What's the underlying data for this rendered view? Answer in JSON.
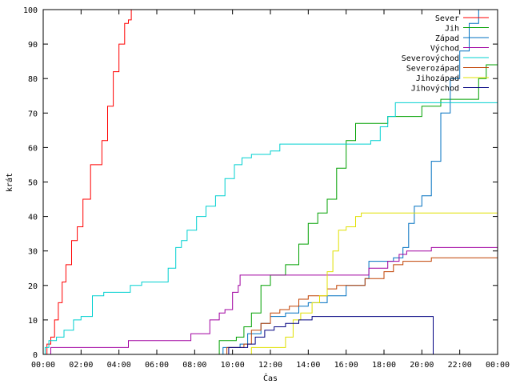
{
  "chart_data": {
    "type": "line",
    "title": "",
    "xlabel": "Čas",
    "ylabel": "krát",
    "xlim": [
      0,
      24
    ],
    "ylim": [
      0,
      100
    ],
    "x_ticks": [
      {
        "v": 0,
        "label": "00:00"
      },
      {
        "v": 2,
        "label": "02:00"
      },
      {
        "v": 4,
        "label": "04:00"
      },
      {
        "v": 6,
        "label": "06:00"
      },
      {
        "v": 8,
        "label": "08:00"
      },
      {
        "v": 10,
        "label": "10:00"
      },
      {
        "v": 12,
        "label": "12:00"
      },
      {
        "v": 14,
        "label": "14:00"
      },
      {
        "v": 16,
        "label": "16:00"
      },
      {
        "v": 18,
        "label": "18:00"
      },
      {
        "v": 20,
        "label": "20:00"
      },
      {
        "v": 22,
        "label": "22:00"
      },
      {
        "v": 24,
        "label": "00:00"
      }
    ],
    "y_ticks": [
      0,
      10,
      20,
      30,
      40,
      50,
      60,
      70,
      80,
      90,
      100
    ],
    "grid": false,
    "legend_position": "top-right",
    "series": [
      {
        "name": "Sever",
        "color": "#ff0000",
        "points": [
          [
            0,
            0
          ],
          [
            0.2,
            3
          ],
          [
            0.4,
            5
          ],
          [
            0.6,
            10
          ],
          [
            0.8,
            15
          ],
          [
            1.0,
            21
          ],
          [
            1.2,
            26
          ],
          [
            1.5,
            33
          ],
          [
            1.8,
            37
          ],
          [
            2.1,
            45
          ],
          [
            2.5,
            55
          ],
          [
            2.8,
            55
          ],
          [
            3.1,
            62
          ],
          [
            3.4,
            72
          ],
          [
            3.7,
            82
          ],
          [
            4.0,
            90
          ],
          [
            4.3,
            96
          ],
          [
            4.5,
            97
          ],
          [
            4.65,
            100
          ]
        ]
      },
      {
        "name": "Jih",
        "color": "#00a000",
        "points": [
          [
            9.2,
            0
          ],
          [
            9.3,
            4
          ],
          [
            9.8,
            4
          ],
          [
            10.2,
            5
          ],
          [
            10.6,
            8
          ],
          [
            11.0,
            12
          ],
          [
            11.5,
            20
          ],
          [
            12.0,
            23
          ],
          [
            12.8,
            26
          ],
          [
            13.5,
            32
          ],
          [
            14.0,
            38
          ],
          [
            14.5,
            41
          ],
          [
            15.0,
            45
          ],
          [
            15.5,
            54
          ],
          [
            16.0,
            62
          ],
          [
            16.5,
            67
          ],
          [
            18.0,
            67
          ],
          [
            18.2,
            69
          ],
          [
            19.2,
            69
          ],
          [
            20.0,
            72
          ],
          [
            21.0,
            74
          ],
          [
            22.8,
            74
          ],
          [
            23.0,
            80
          ],
          [
            23.4,
            84
          ],
          [
            24,
            85
          ]
        ]
      },
      {
        "name": "Západ",
        "color": "#0070c0",
        "points": [
          [
            9.4,
            0
          ],
          [
            9.5,
            2
          ],
          [
            10.4,
            3
          ],
          [
            10.8,
            6
          ],
          [
            11.5,
            9
          ],
          [
            12.0,
            11
          ],
          [
            12.8,
            12
          ],
          [
            13.5,
            14
          ],
          [
            14.0,
            15
          ],
          [
            15.0,
            17
          ],
          [
            16.0,
            20
          ],
          [
            17.0,
            22
          ],
          [
            17.2,
            27
          ],
          [
            18.5,
            28
          ],
          [
            19.0,
            31
          ],
          [
            19.3,
            38
          ],
          [
            19.6,
            43
          ],
          [
            20.0,
            46
          ],
          [
            20.5,
            56
          ],
          [
            21.0,
            70
          ],
          [
            21.5,
            80
          ],
          [
            22.0,
            88
          ],
          [
            22.5,
            96
          ],
          [
            23.0,
            100
          ]
        ]
      },
      {
        "name": "Východ",
        "color": "#a000a0",
        "points": [
          [
            0.3,
            0
          ],
          [
            0.4,
            2
          ],
          [
            4.4,
            2
          ],
          [
            4.5,
            4
          ],
          [
            7.6,
            4
          ],
          [
            7.8,
            6
          ],
          [
            8.6,
            6
          ],
          [
            8.8,
            10
          ],
          [
            9.3,
            12
          ],
          [
            9.6,
            13
          ],
          [
            10.0,
            18
          ],
          [
            10.3,
            20
          ],
          [
            10.4,
            23
          ],
          [
            17.0,
            23
          ],
          [
            17.2,
            25
          ],
          [
            18.2,
            27
          ],
          [
            18.8,
            29
          ],
          [
            19.2,
            30
          ],
          [
            20.0,
            30
          ],
          [
            20.5,
            31
          ],
          [
            24,
            31
          ]
        ]
      },
      {
        "name": "Severovýchod",
        "color": "#00d0d0",
        "points": [
          [
            0,
            0
          ],
          [
            0.1,
            2
          ],
          [
            0.3,
            4
          ],
          [
            0.7,
            5
          ],
          [
            1.1,
            7
          ],
          [
            1.6,
            10
          ],
          [
            2.0,
            11
          ],
          [
            2.6,
            17
          ],
          [
            3.2,
            18
          ],
          [
            4.4,
            18
          ],
          [
            4.6,
            20
          ],
          [
            5.2,
            21
          ],
          [
            6.2,
            21
          ],
          [
            6.6,
            25
          ],
          [
            7.0,
            31
          ],
          [
            7.3,
            33
          ],
          [
            7.6,
            36
          ],
          [
            8.1,
            40
          ],
          [
            8.6,
            43
          ],
          [
            9.1,
            46
          ],
          [
            9.6,
            51
          ],
          [
            10.1,
            55
          ],
          [
            10.5,
            57
          ],
          [
            11.0,
            58
          ],
          [
            12.0,
            59
          ],
          [
            12.5,
            61
          ],
          [
            16.8,
            61
          ],
          [
            17.3,
            62
          ],
          [
            17.8,
            66
          ],
          [
            18.2,
            69
          ],
          [
            18.6,
            73
          ],
          [
            24,
            73
          ]
        ]
      },
      {
        "name": "Severozápad",
        "color": "#c04000",
        "points": [
          [
            9.6,
            0
          ],
          [
            9.7,
            2
          ],
          [
            10.6,
            3
          ],
          [
            11.0,
            7
          ],
          [
            11.5,
            9
          ],
          [
            12.0,
            12
          ],
          [
            12.5,
            13
          ],
          [
            13.0,
            14
          ],
          [
            13.5,
            16
          ],
          [
            14.0,
            17
          ],
          [
            15.0,
            19
          ],
          [
            15.5,
            20
          ],
          [
            16.5,
            20
          ],
          [
            17.0,
            22
          ],
          [
            18.0,
            24
          ],
          [
            18.5,
            26
          ],
          [
            19.0,
            27
          ],
          [
            20.5,
            28
          ],
          [
            24,
            28
          ]
        ]
      },
      {
        "name": "Jihozápad",
        "color": "#e0e000",
        "points": [
          [
            10.8,
            0
          ],
          [
            11.0,
            2
          ],
          [
            12.5,
            2
          ],
          [
            12.8,
            5
          ],
          [
            13.2,
            10
          ],
          [
            13.6,
            12
          ],
          [
            14.2,
            15
          ],
          [
            14.6,
            17
          ],
          [
            15.0,
            24
          ],
          [
            15.3,
            30
          ],
          [
            15.6,
            36
          ],
          [
            16.0,
            37
          ],
          [
            16.5,
            40
          ],
          [
            16.8,
            41
          ],
          [
            24,
            41
          ]
        ]
      },
      {
        "name": "Jihovýchod",
        "color": "#000080",
        "points": [
          [
            9.7,
            0
          ],
          [
            9.8,
            2
          ],
          [
            10.8,
            3
          ],
          [
            11.2,
            5
          ],
          [
            11.7,
            7
          ],
          [
            12.2,
            8
          ],
          [
            12.8,
            9
          ],
          [
            13.5,
            10
          ],
          [
            14.2,
            11
          ],
          [
            20.5,
            11
          ],
          [
            20.6,
            0
          ]
        ]
      }
    ]
  }
}
